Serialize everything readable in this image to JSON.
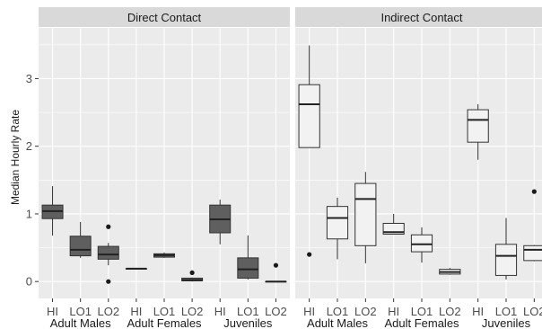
{
  "chart_data": {
    "type": "boxplot",
    "ylabel": "Median Hourly Rate",
    "ylim": [
      -0.25,
      3.75
    ],
    "yticks": [
      0,
      1,
      2,
      3
    ],
    "grid": true,
    "group_labels": [
      "Adult Males",
      "Adult Females",
      "Juveniles"
    ],
    "panels": [
      {
        "title": "Direct Contact",
        "fill": "#5f5f5f",
        "categories": [
          "HI",
          "LO1",
          "LO2",
          "HI",
          "LO1",
          "LO2",
          "HI",
          "LO1",
          "LO2"
        ],
        "boxes": [
          {
            "min": 0.68,
            "q1": 0.93,
            "median": 1.04,
            "q3": 1.13,
            "max": 1.41,
            "outliers": []
          },
          {
            "min": 0.35,
            "q1": 0.38,
            "median": 0.47,
            "q3": 0.67,
            "max": 0.88,
            "outliers": []
          },
          {
            "min": 0.24,
            "q1": 0.33,
            "median": 0.4,
            "q3": 0.52,
            "max": 0.57,
            "outliers": [
              0.81,
              0.0
            ]
          },
          {
            "min": 0.19,
            "q1": 0.19,
            "median": 0.19,
            "q3": 0.19,
            "max": 0.19,
            "outliers": []
          },
          {
            "min": 0.35,
            "q1": 0.36,
            "median": 0.39,
            "q3": 0.41,
            "max": 0.43,
            "outliers": []
          },
          {
            "min": 0.0,
            "q1": 0.01,
            "median": 0.02,
            "q3": 0.05,
            "max": 0.06,
            "outliers": [
              0.13
            ]
          },
          {
            "min": 0.55,
            "q1": 0.72,
            "median": 0.92,
            "q3": 1.13,
            "max": 1.21,
            "outliers": []
          },
          {
            "min": 0.03,
            "q1": 0.05,
            "median": 0.18,
            "q3": 0.35,
            "max": 0.68,
            "outliers": []
          },
          {
            "min": 0.0,
            "q1": 0.0,
            "median": 0.0,
            "q3": 0.0,
            "max": 0.0,
            "outliers": [
              0.24
            ]
          }
        ]
      },
      {
        "title": "Indirect Contact",
        "fill": "#f2f2f2",
        "categories": [
          "HI",
          "LO1",
          "LO2",
          "HI",
          "LO1",
          "LO2",
          "HI",
          "LO1",
          "LO2"
        ],
        "boxes": [
          {
            "min": 1.98,
            "q1": 1.98,
            "median": 2.62,
            "q3": 2.91,
            "max": 3.49,
            "outliers": [
              0.4
            ]
          },
          {
            "min": 0.33,
            "q1": 0.63,
            "median": 0.94,
            "q3": 1.11,
            "max": 1.24,
            "outliers": []
          },
          {
            "min": 0.27,
            "q1": 0.53,
            "median": 1.22,
            "q3": 1.45,
            "max": 1.62,
            "outliers": []
          },
          {
            "min": 0.7,
            "q1": 0.7,
            "median": 0.73,
            "q3": 0.86,
            "max": 1.0,
            "outliers": []
          },
          {
            "min": 0.28,
            "q1": 0.44,
            "median": 0.55,
            "q3": 0.69,
            "max": 0.8,
            "outliers": []
          },
          {
            "min": 0.1,
            "q1": 0.11,
            "median": 0.14,
            "q3": 0.18,
            "max": 0.2,
            "outliers": []
          },
          {
            "min": 1.8,
            "q1": 2.06,
            "median": 2.39,
            "q3": 2.54,
            "max": 2.62,
            "outliers": []
          },
          {
            "min": 0.03,
            "q1": 0.09,
            "median": 0.38,
            "q3": 0.55,
            "max": 0.94,
            "outliers": []
          },
          {
            "min": 0.3,
            "q1": 0.31,
            "median": 0.47,
            "q3": 0.53,
            "max": 0.54,
            "outliers": [
              1.33
            ]
          }
        ]
      }
    ]
  }
}
